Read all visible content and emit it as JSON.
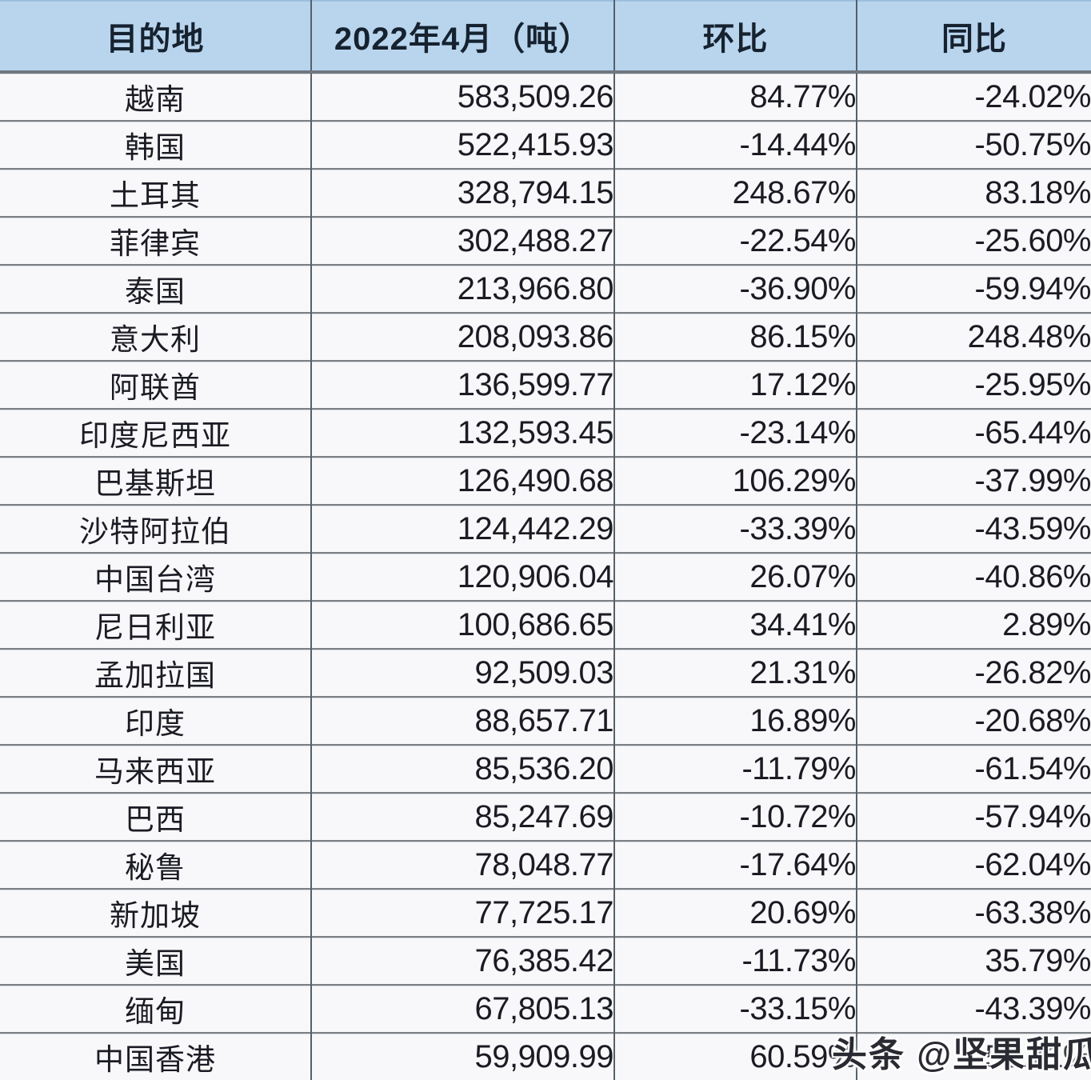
{
  "table": {
    "columns": [
      {
        "label": "目的地"
      },
      {
        "label": "2022年4月（吨）"
      },
      {
        "label": "环比"
      },
      {
        "label": "同比"
      }
    ],
    "rows": [
      {
        "destination": "越南",
        "volume": "583,509.26",
        "mom": "84.77%",
        "yoy": "-24.02%"
      },
      {
        "destination": "韩国",
        "volume": "522,415.93",
        "mom": "-14.44%",
        "yoy": "-50.75%"
      },
      {
        "destination": "土耳其",
        "volume": "328,794.15",
        "mom": "248.67%",
        "yoy": "83.18%"
      },
      {
        "destination": "菲律宾",
        "volume": "302,488.27",
        "mom": "-22.54%",
        "yoy": "-25.60%"
      },
      {
        "destination": "泰国",
        "volume": "213,966.80",
        "mom": "-36.90%",
        "yoy": "-59.94%"
      },
      {
        "destination": "意大利",
        "volume": "208,093.86",
        "mom": "86.15%",
        "yoy": "248.48%"
      },
      {
        "destination": "阿联酋",
        "volume": "136,599.77",
        "mom": "17.12%",
        "yoy": "-25.95%"
      },
      {
        "destination": "印度尼西亚",
        "volume": "132,593.45",
        "mom": "-23.14%",
        "yoy": "-65.44%"
      },
      {
        "destination": "巴基斯坦",
        "volume": "126,490.68",
        "mom": "106.29%",
        "yoy": "-37.99%"
      },
      {
        "destination": "沙特阿拉伯",
        "volume": "124,442.29",
        "mom": "-33.39%",
        "yoy": "-43.59%"
      },
      {
        "destination": "中国台湾",
        "volume": "120,906.04",
        "mom": "26.07%",
        "yoy": "-40.86%"
      },
      {
        "destination": "尼日利亚",
        "volume": "100,686.65",
        "mom": "34.41%",
        "yoy": "2.89%"
      },
      {
        "destination": "孟加拉国",
        "volume": "92,509.03",
        "mom": "21.31%",
        "yoy": "-26.82%"
      },
      {
        "destination": "印度",
        "volume": "88,657.71",
        "mom": "16.89%",
        "yoy": "-20.68%"
      },
      {
        "destination": "马来西亚",
        "volume": "85,536.20",
        "mom": "-11.79%",
        "yoy": "-61.54%"
      },
      {
        "destination": "巴西",
        "volume": "85,247.69",
        "mom": "-10.72%",
        "yoy": "-57.94%"
      },
      {
        "destination": "秘鲁",
        "volume": "78,048.77",
        "mom": "-17.64%",
        "yoy": "-62.04%"
      },
      {
        "destination": "新加坡",
        "volume": "77,725.17",
        "mom": "20.69%",
        "yoy": "-63.38%"
      },
      {
        "destination": "美国",
        "volume": "76,385.42",
        "mom": "-11.73%",
        "yoy": "35.79%"
      },
      {
        "destination": "缅甸",
        "volume": "67,805.13",
        "mom": "-33.15%",
        "yoy": "-43.39%"
      },
      {
        "destination": "中国香港",
        "volume": "59,909.99",
        "mom": "60.59%",
        "yoy": "-55.71%"
      }
    ]
  },
  "watermark": {
    "text": "头条 @坚果甜瓜"
  },
  "colors": {
    "header_bg": "#b9d5ee",
    "header_text": "#16222f",
    "row_bg": "#f8f8fa",
    "cell_text": "#1b1b24",
    "grid_vertical": "#566069",
    "grid_horizontal": "#7c8085",
    "watermark_text": "#2a2a33"
  }
}
